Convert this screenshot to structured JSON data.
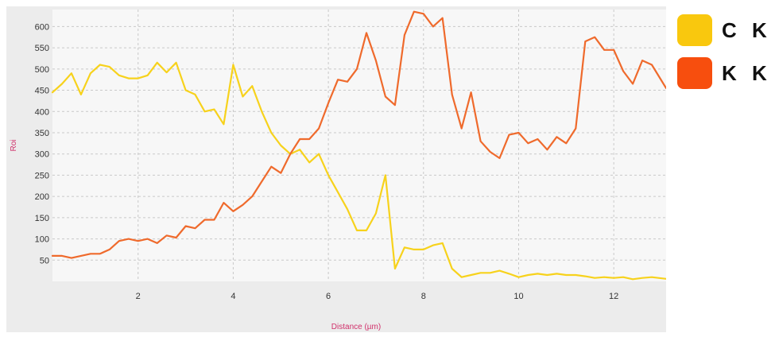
{
  "chart_data": {
    "type": "line",
    "xlabel": "Distance (µm)",
    "ylabel": "Roi",
    "xlim": [
      0.2,
      13.1
    ],
    "ylim": [
      0,
      640
    ],
    "x_ticks": [
      "2",
      "4",
      "6",
      "8",
      "10",
      "12"
    ],
    "y_ticks": [
      "50",
      "100",
      "150",
      "200",
      "250",
      "300",
      "350",
      "400",
      "450",
      "500",
      "550",
      "600"
    ],
    "grid": true,
    "legend_position": "right",
    "series": [
      {
        "name": "C K",
        "color": "#f7d21c",
        "swatch": "#f9c80e",
        "x": [
          0.2,
          0.4,
          0.6,
          0.8,
          1.0,
          1.2,
          1.4,
          1.6,
          1.8,
          2.0,
          2.2,
          2.4,
          2.6,
          2.8,
          3.0,
          3.2,
          3.4,
          3.6,
          3.8,
          4.0,
          4.2,
          4.4,
          4.6,
          4.8,
          5.0,
          5.2,
          5.4,
          5.6,
          5.8,
          6.0,
          6.2,
          6.4,
          6.6,
          6.8,
          7.0,
          7.2,
          7.4,
          7.6,
          7.8,
          8.0,
          8.2,
          8.4,
          8.6,
          8.8,
          9.0,
          9.2,
          9.4,
          9.6,
          9.8,
          10.0,
          10.2,
          10.4,
          10.6,
          10.8,
          11.0,
          11.2,
          11.4,
          11.6,
          11.8,
          12.0,
          12.2,
          12.4,
          12.6,
          12.8,
          13.1
        ],
        "y": [
          445,
          465,
          490,
          440,
          490,
          510,
          505,
          485,
          478,
          478,
          485,
          515,
          492,
          515,
          450,
          440,
          400,
          405,
          370,
          510,
          435,
          460,
          400,
          350,
          320,
          300,
          310,
          280,
          300,
          250,
          210,
          170,
          120,
          120,
          160,
          250,
          30,
          80,
          75,
          75,
          85,
          90,
          30,
          10,
          15,
          20,
          20,
          25,
          18,
          10,
          15,
          18,
          15,
          18,
          15,
          15,
          12,
          8,
          10,
          8,
          10,
          5,
          8,
          10,
          6
        ]
      },
      {
        "name": "K K",
        "color": "#ef6a2c",
        "swatch": "#f74e0e",
        "x": [
          0.2,
          0.4,
          0.6,
          0.8,
          1.0,
          1.2,
          1.4,
          1.6,
          1.8,
          2.0,
          2.2,
          2.4,
          2.6,
          2.8,
          3.0,
          3.2,
          3.4,
          3.6,
          3.8,
          4.0,
          4.2,
          4.4,
          4.6,
          4.8,
          5.0,
          5.2,
          5.4,
          5.6,
          5.8,
          6.0,
          6.2,
          6.4,
          6.6,
          6.8,
          7.0,
          7.2,
          7.4,
          7.6,
          7.8,
          8.0,
          8.2,
          8.4,
          8.6,
          8.8,
          9.0,
          9.2,
          9.4,
          9.6,
          9.8,
          10.0,
          10.2,
          10.4,
          10.6,
          10.8,
          11.0,
          11.2,
          11.4,
          11.6,
          11.8,
          12.0,
          12.2,
          12.4,
          12.6,
          12.8,
          13.1
        ],
        "y": [
          60,
          60,
          55,
          60,
          65,
          65,
          75,
          95,
          100,
          95,
          100,
          90,
          108,
          103,
          130,
          125,
          145,
          145,
          185,
          165,
          180,
          200,
          235,
          270,
          255,
          300,
          335,
          335,
          360,
          420,
          475,
          470,
          500,
          585,
          520,
          435,
          415,
          580,
          635,
          630,
          600,
          620,
          440,
          360,
          445,
          330,
          305,
          290,
          345,
          350,
          325,
          335,
          310,
          340,
          325,
          360,
          565,
          575,
          545,
          545,
          495,
          465,
          520,
          510,
          455
        ]
      }
    ]
  }
}
